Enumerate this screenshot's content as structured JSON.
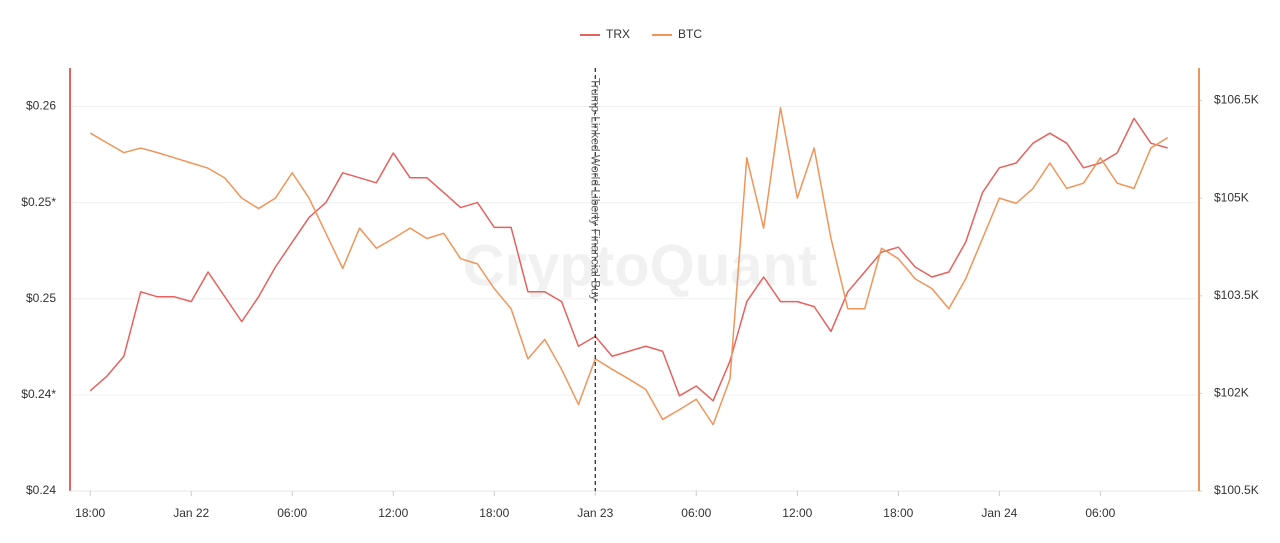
{
  "chart_data": {
    "type": "line",
    "watermark": "CryptoQuant",
    "legend": "top",
    "grid": true,
    "annotation": {
      "x": "Jan 23 00:00",
      "text": "Trump-Linked World Liberty Financial Buy"
    },
    "x": [
      "Jan 21 18:00",
      "Jan 21 19:00",
      "Jan 21 20:00",
      "Jan 21 21:00",
      "Jan 21 22:00",
      "Jan 21 23:00",
      "Jan 22 00:00",
      "Jan 22 01:00",
      "Jan 22 02:00",
      "Jan 22 03:00",
      "Jan 22 04:00",
      "Jan 22 05:00",
      "Jan 22 06:00",
      "Jan 22 07:00",
      "Jan 22 08:00",
      "Jan 22 09:00",
      "Jan 22 10:00",
      "Jan 22 11:00",
      "Jan 22 12:00",
      "Jan 22 13:00",
      "Jan 22 14:00",
      "Jan 22 15:00",
      "Jan 22 16:00",
      "Jan 22 17:00",
      "Jan 22 18:00",
      "Jan 22 19:00",
      "Jan 22 20:00",
      "Jan 22 21:00",
      "Jan 22 22:00",
      "Jan 22 23:00",
      "Jan 23 00:00",
      "Jan 23 01:00",
      "Jan 23 02:00",
      "Jan 23 03:00",
      "Jan 23 04:00",
      "Jan 23 05:00",
      "Jan 23 06:00",
      "Jan 23 07:00",
      "Jan 23 08:00",
      "Jan 23 09:00",
      "Jan 23 10:00",
      "Jan 23 11:00",
      "Jan 23 12:00",
      "Jan 23 13:00",
      "Jan 23 14:00",
      "Jan 23 15:00",
      "Jan 23 16:00",
      "Jan 23 17:00",
      "Jan 23 18:00",
      "Jan 23 19:00",
      "Jan 23 20:00",
      "Jan 23 21:00",
      "Jan 23 22:00",
      "Jan 23 23:00",
      "Jan 24 00:00",
      "Jan 24 01:00",
      "Jan 24 02:00",
      "Jan 24 03:00",
      "Jan 24 04:00",
      "Jan 24 05:00",
      "Jan 24 06:00",
      "Jan 24 07:00",
      "Jan 24 08:00",
      "Jan 24 09:00",
      "Jan 24 10:00"
    ],
    "series": [
      {
        "name": "TRX",
        "color": "#e5625e",
        "axis": "y",
        "values": [
          0.24521,
          0.24598,
          0.24701,
          0.25036,
          0.2501,
          0.2501,
          0.24985,
          0.25139,
          0.2501,
          0.24881,
          0.2501,
          0.25165,
          0.25294,
          0.25423,
          0.255,
          0.25655,
          0.25629,
          0.25603,
          0.25758,
          0.25629,
          0.25629,
          0.25552,
          0.25474,
          0.255,
          0.25371,
          0.25371,
          0.25036,
          0.25036,
          0.24985,
          0.24753,
          0.24804,
          0.24701,
          0.24727,
          0.24753,
          0.24727,
          0.24495,
          0.24546,
          0.24469,
          0.24675,
          0.24985,
          0.25113,
          0.24985,
          0.24985,
          0.24959,
          0.2483,
          0.25036,
          0.25139,
          0.25242,
          0.25268,
          0.25165,
          0.25113,
          0.25139,
          0.25294,
          0.25552,
          0.25681,
          0.25706,
          0.25809,
          0.25861,
          0.25809,
          0.25681,
          0.25706,
          0.25758,
          0.25938,
          0.25809,
          0.25784
        ]
      },
      {
        "name": "BTC",
        "color": "#f0955a",
        "axis": "y2",
        "values": [
          106000,
          105850,
          105700,
          105770,
          105700,
          105620,
          105540,
          105460,
          105310,
          105000,
          104840,
          105000,
          105390,
          105000,
          104460,
          103920,
          104540,
          104230,
          104380,
          104540,
          104380,
          104460,
          104070,
          103990,
          103610,
          103300,
          102530,
          102830,
          102370,
          101830,
          102530,
          102370,
          102220,
          102060,
          101600,
          101750,
          101910,
          101520,
          102220,
          105620,
          104540,
          106390,
          105000,
          105770,
          104380,
          103300,
          103300,
          104230,
          104070,
          103760,
          103610,
          103300,
          103760,
          104380,
          105000,
          104920,
          105150,
          105540,
          105150,
          105230,
          105620,
          105230,
          105150,
          105770,
          105930
        ]
      }
    ],
    "xlim": [
      "Jan 21 16:48",
      "Jan 24 11:48"
    ],
    "xticks": [
      {
        "value": "Jan 21 18:00",
        "label": "18:00"
      },
      {
        "value": "Jan 22 00:00",
        "label": "Jan 22"
      },
      {
        "value": "Jan 22 06:00",
        "label": "06:00"
      },
      {
        "value": "Jan 22 12:00",
        "label": "12:00"
      },
      {
        "value": "Jan 22 18:00",
        "label": "18:00"
      },
      {
        "value": "Jan 23 00:00",
        "label": "Jan 23"
      },
      {
        "value": "Jan 23 06:00",
        "label": "06:00"
      },
      {
        "value": "Jan 23 12:00",
        "label": "12:00"
      },
      {
        "value": "Jan 23 18:00",
        "label": "18:00"
      },
      {
        "value": "Jan 24 00:00",
        "label": "Jan 24"
      },
      {
        "value": "Jan 24 06:00",
        "label": "06:00"
      }
    ],
    "ylim": [
      0.24,
      0.262
    ],
    "yticks": [
      {
        "value": 0.24,
        "label": "$0.24"
      },
      {
        "value": 0.245,
        "label": "$0.24*"
      },
      {
        "value": 0.25,
        "label": "$0.25"
      },
      {
        "value": 0.255,
        "label": "$0.25*"
      },
      {
        "value": 0.26,
        "label": "$0.26"
      }
    ],
    "y2lim": [
      100500,
      107000
    ],
    "y2ticks": [
      {
        "value": 100500,
        "label": "$100.5K"
      },
      {
        "value": 102000,
        "label": "$102K"
      },
      {
        "value": 103500,
        "label": "$103.5K"
      },
      {
        "value": 105000,
        "label": "$105K"
      },
      {
        "value": 106500,
        "label": "$106.5K"
      }
    ]
  }
}
